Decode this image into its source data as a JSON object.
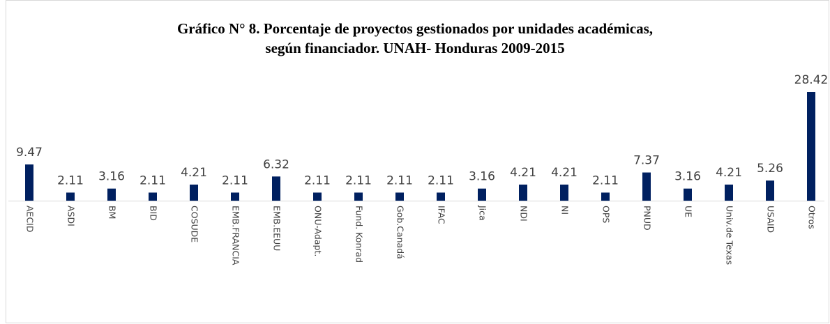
{
  "chart_data": {
    "type": "bar",
    "title": [
      "Gráfico N° 8. Porcentaje de proyectos gestionados por unidades académicas,",
      "según financiador. UNAH- Honduras 2009-2015"
    ],
    "categories": [
      "AECID",
      "ASDI",
      "BM",
      "BID",
      "COSUDE",
      "EMB.FRANCIA",
      "EMB.EEUU",
      "ONU-Adapt.",
      "Fund. Konrad",
      "Gob.Canadá",
      "IFAC",
      "Jica",
      "NDI",
      "NI",
      "OPS",
      "PNUD",
      "UE",
      "Univ.de Texas",
      "USAID",
      "Otros"
    ],
    "values": [
      9.47,
      2.11,
      3.16,
      2.11,
      4.21,
      2.11,
      6.32,
      2.11,
      2.11,
      2.11,
      2.11,
      3.16,
      4.21,
      4.21,
      2.11,
      7.37,
      3.16,
      4.21,
      5.26,
      28.42
    ],
    "color": "#002060"
  }
}
